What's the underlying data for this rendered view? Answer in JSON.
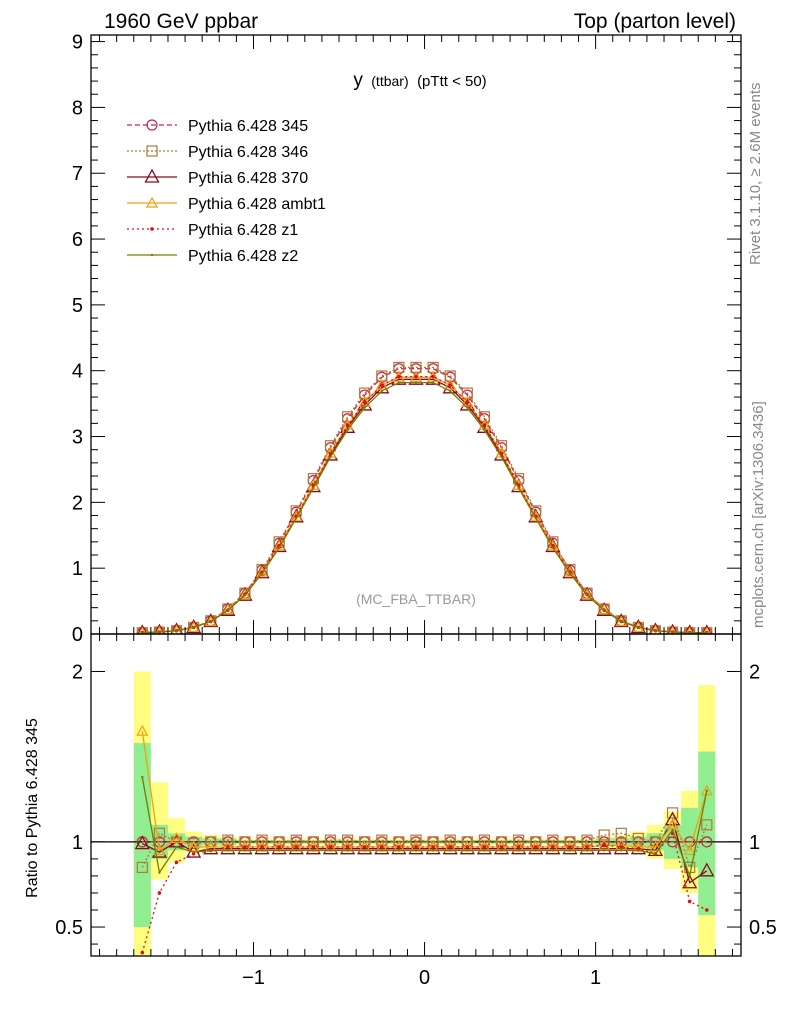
{
  "header": {
    "left": "1960 GeV ppbar",
    "right": "Top (parton level)"
  },
  "side_labels": {
    "rivet": "Rivet 3.1.10, ≥ 2.6M events",
    "mcplots": "mcplots.cern.ch [arXiv:1306.3436]"
  },
  "watermark": "(MC_FBA_TTBAR)",
  "chart_data": {
    "type": "line",
    "title": "y (ttbar) (pTtt < 50)",
    "title_main": "y",
    "title_sub": "(ttbar)",
    "title_cut": "(pTtt < 50)",
    "xlim": [
      -1.95,
      1.85
    ],
    "ylim": [
      0,
      9.1
    ],
    "ratio_ylim": [
      0.33,
      2.22
    ],
    "xticks": [
      -1,
      0,
      1
    ],
    "xtick_labels": [
      "−1",
      "0",
      "1"
    ],
    "yticks": [
      0,
      1,
      2,
      3,
      4,
      5,
      6,
      7,
      8,
      9
    ],
    "ytick_labels": [
      "0",
      "1",
      "2",
      "3",
      "4",
      "5",
      "6",
      "7",
      "8",
      "9"
    ],
    "ratio_yticks": [
      0.5,
      1,
      2
    ],
    "ratio_ytick_labels": [
      "0.5",
      "1",
      "2"
    ],
    "ratio_ylabel": "Ratio to Pythia 6.428 345",
    "x": [
      -1.65,
      -1.55,
      -1.45,
      -1.35,
      -1.25,
      -1.15,
      -1.05,
      -0.95,
      -0.85,
      -0.75,
      -0.65,
      -0.55,
      -0.45,
      -0.35,
      -0.25,
      -0.15,
      -0.05,
      0.05,
      0.15,
      0.25,
      0.35,
      0.45,
      0.55,
      0.65,
      0.75,
      0.85,
      0.95,
      1.05,
      1.15,
      1.25,
      1.35,
      1.45,
      1.55,
      1.65
    ],
    "series": [
      {
        "name": "Pythia 6.428 345",
        "label": "Pythia 6.428 345",
        "color": "#cc2244",
        "marker": "circle",
        "dash": "5,3",
        "values": [
          0.02,
          0.03,
          0.05,
          0.1,
          0.2,
          0.38,
          0.62,
          0.97,
          1.38,
          1.85,
          2.33,
          2.83,
          3.27,
          3.63,
          3.9,
          4.03,
          4.03,
          4.03,
          3.9,
          3.63,
          3.27,
          2.83,
          2.33,
          1.85,
          1.38,
          0.97,
          0.62,
          0.38,
          0.2,
          0.1,
          0.05,
          0.03,
          0.02,
          0.02
        ],
        "ratio": [
          1,
          1,
          1,
          1,
          1,
          1,
          1,
          1,
          1,
          1,
          1,
          1,
          1,
          1,
          1,
          1,
          1,
          1,
          1,
          1,
          1,
          1,
          1,
          1,
          1,
          1,
          1,
          1,
          1,
          1,
          1,
          1,
          1,
          1
        ]
      },
      {
        "name": "Pythia 6.428 346",
        "label": "Pythia 6.428 346",
        "color": "#b07a3a",
        "marker": "square",
        "dash": "2,2",
        "values": [
          0.02,
          0.03,
          0.05,
          0.1,
          0.2,
          0.38,
          0.62,
          0.98,
          1.4,
          1.87,
          2.36,
          2.86,
          3.3,
          3.66,
          3.92,
          4.05,
          4.05,
          4.05,
          3.92,
          3.66,
          3.3,
          2.86,
          2.36,
          1.87,
          1.4,
          0.98,
          0.62,
          0.38,
          0.2,
          0.1,
          0.05,
          0.03,
          0.02,
          0.02
        ],
        "ratio": [
          0.85,
          1.05,
          1.0,
          0.99,
          1.0,
          1.01,
          1.0,
          1.01,
          1.0,
          1.01,
          1.0,
          1.01,
          1.01,
          1.0,
          1.01,
          1.0,
          1.01,
          1.0,
          1.01,
          1.0,
          1.01,
          1.0,
          1.01,
          1.0,
          1.01,
          1.0,
          1.01,
          1.04,
          1.05,
          1.02,
          1.0,
          1.17,
          0.85,
          1.1
        ]
      },
      {
        "name": "Pythia 6.428 370",
        "label": "Pythia 6.428 370",
        "color": "#8b0a1a",
        "marker": "triangle",
        "dash": "",
        "values": [
          0.02,
          0.03,
          0.05,
          0.1,
          0.19,
          0.36,
          0.59,
          0.93,
          1.33,
          1.78,
          2.24,
          2.72,
          3.14,
          3.48,
          3.74,
          3.87,
          3.87,
          3.87,
          3.74,
          3.48,
          3.14,
          2.72,
          2.24,
          1.78,
          1.33,
          0.93,
          0.59,
          0.36,
          0.19,
          0.1,
          0.05,
          0.03,
          0.02,
          0.02
        ],
        "ratio": [
          0.99,
          0.94,
          1.0,
          0.94,
          0.96,
          0.96,
          0.96,
          0.96,
          0.96,
          0.96,
          0.96,
          0.96,
          0.96,
          0.96,
          0.96,
          0.96,
          0.96,
          0.96,
          0.96,
          0.96,
          0.96,
          0.96,
          0.96,
          0.96,
          0.96,
          0.96,
          0.96,
          0.96,
          0.96,
          0.96,
          0.95,
          1.13,
          0.76,
          0.83
        ]
      },
      {
        "name": "Pythia 6.428 ambt1",
        "label": "Pythia 6.428 ambt1",
        "color": "#f0a010",
        "marker": "triangle-small",
        "dash": "",
        "values": [
          0.02,
          0.03,
          0.05,
          0.1,
          0.19,
          0.37,
          0.6,
          0.94,
          1.34,
          1.79,
          2.26,
          2.75,
          3.17,
          3.52,
          3.78,
          3.9,
          3.9,
          3.9,
          3.78,
          3.52,
          3.17,
          2.75,
          2.26,
          1.79,
          1.34,
          0.94,
          0.6,
          0.37,
          0.19,
          0.1,
          0.05,
          0.03,
          0.02,
          0.02
        ],
        "ratio": [
          1.65,
          0.95,
          1.02,
          0.97,
          0.97,
          0.97,
          0.97,
          0.97,
          0.97,
          0.97,
          0.97,
          0.97,
          0.97,
          0.97,
          0.97,
          0.97,
          0.97,
          0.97,
          0.97,
          0.97,
          0.97,
          0.97,
          0.97,
          0.97,
          0.97,
          0.97,
          0.97,
          0.98,
          0.98,
          0.97,
          0.97,
          1.1,
          0.95,
          1.3
        ]
      },
      {
        "name": "Pythia 6.428 z1",
        "label": "Pythia 6.428 z1",
        "color": "#dd1111",
        "marker": "dot",
        "dash": "2,3",
        "values": [
          0.02,
          0.03,
          0.05,
          0.1,
          0.19,
          0.36,
          0.6,
          0.94,
          1.34,
          1.79,
          2.26,
          2.74,
          3.17,
          3.52,
          3.78,
          3.91,
          3.91,
          3.91,
          3.78,
          3.52,
          3.17,
          2.74,
          2.26,
          1.79,
          1.34,
          0.94,
          0.6,
          0.36,
          0.19,
          0.1,
          0.05,
          0.03,
          0.02,
          0.02
        ],
        "ratio": [
          0.35,
          0.7,
          0.88,
          0.93,
          0.95,
          0.97,
          0.97,
          0.97,
          0.97,
          0.97,
          0.97,
          0.97,
          0.97,
          0.97,
          0.97,
          0.97,
          0.97,
          0.97,
          0.97,
          0.97,
          0.97,
          0.97,
          0.97,
          0.97,
          0.97,
          0.97,
          0.97,
          0.98,
          0.97,
          0.96,
          0.93,
          1.05,
          0.65,
          0.6
        ]
      },
      {
        "name": "Pythia 6.428 z2",
        "label": "Pythia 6.428 z2",
        "color": "#7a7a00",
        "marker": "dot-small",
        "dash": "",
        "values": [
          0.02,
          0.03,
          0.05,
          0.1,
          0.19,
          0.36,
          0.59,
          0.92,
          1.31,
          1.76,
          2.22,
          2.69,
          3.1,
          3.44,
          3.69,
          3.82,
          3.82,
          3.82,
          3.69,
          3.44,
          3.1,
          2.69,
          2.22,
          1.76,
          1.31,
          0.92,
          0.59,
          0.36,
          0.19,
          0.1,
          0.05,
          0.03,
          0.02,
          0.02
        ],
        "ratio": [
          1.38,
          0.82,
          0.97,
          0.94,
          0.95,
          0.95,
          0.95,
          0.95,
          0.95,
          0.95,
          0.95,
          0.95,
          0.95,
          0.95,
          0.95,
          0.95,
          0.95,
          0.95,
          0.95,
          0.95,
          0.95,
          0.95,
          0.95,
          0.95,
          0.95,
          0.95,
          0.95,
          0.95,
          0.95,
          0.95,
          0.93,
          1.07,
          0.8,
          1.3
        ]
      }
    ],
    "ratio_band_inner": [
      [
        0.5,
        1.58
      ],
      [
        0.9,
        1.1
      ],
      [
        0.95,
        1.05
      ],
      [
        0.97,
        1.03
      ],
      [
        0.98,
        1.02
      ],
      [
        0.98,
        1.02
      ],
      [
        0.99,
        1.01
      ],
      [
        0.99,
        1.01
      ],
      [
        0.99,
        1.01
      ],
      [
        0.99,
        1.01
      ],
      [
        0.99,
        1.01
      ],
      [
        0.99,
        1.01
      ],
      [
        0.99,
        1.01
      ],
      [
        0.99,
        1.01
      ],
      [
        0.99,
        1.01
      ],
      [
        0.99,
        1.01
      ],
      [
        0.99,
        1.01
      ],
      [
        0.99,
        1.01
      ],
      [
        0.99,
        1.01
      ],
      [
        0.99,
        1.01
      ],
      [
        0.99,
        1.01
      ],
      [
        0.99,
        1.01
      ],
      [
        0.99,
        1.01
      ],
      [
        0.99,
        1.01
      ],
      [
        0.99,
        1.01
      ],
      [
        0.99,
        1.01
      ],
      [
        0.99,
        1.01
      ],
      [
        0.98,
        1.02
      ],
      [
        0.98,
        1.02
      ],
      [
        0.97,
        1.03
      ],
      [
        0.95,
        1.05
      ],
      [
        0.9,
        1.1
      ],
      [
        0.85,
        1.2
      ],
      [
        0.57,
        1.53
      ]
    ],
    "ratio_band_outer": [
      [
        0.33,
        2.0
      ],
      [
        0.78,
        1.35
      ],
      [
        0.88,
        1.14
      ],
      [
        0.94,
        1.06
      ],
      [
        0.96,
        1.04
      ],
      [
        0.97,
        1.03
      ],
      [
        0.98,
        1.02
      ],
      [
        0.98,
        1.02
      ],
      [
        0.98,
        1.02
      ],
      [
        0.98,
        1.02
      ],
      [
        0.98,
        1.02
      ],
      [
        0.98,
        1.02
      ],
      [
        0.98,
        1.02
      ],
      [
        0.98,
        1.02
      ],
      [
        0.98,
        1.02
      ],
      [
        0.98,
        1.02
      ],
      [
        0.98,
        1.02
      ],
      [
        0.98,
        1.02
      ],
      [
        0.98,
        1.02
      ],
      [
        0.98,
        1.02
      ],
      [
        0.98,
        1.02
      ],
      [
        0.98,
        1.02
      ],
      [
        0.98,
        1.02
      ],
      [
        0.98,
        1.02
      ],
      [
        0.98,
        1.02
      ],
      [
        0.98,
        1.02
      ],
      [
        0.98,
        1.02
      ],
      [
        0.97,
        1.03
      ],
      [
        0.96,
        1.04
      ],
      [
        0.94,
        1.06
      ],
      [
        0.9,
        1.1
      ],
      [
        0.84,
        1.18
      ],
      [
        0.7,
        1.3
      ],
      [
        0.33,
        1.92
      ]
    ],
    "band_colors": {
      "inner": "#90ee90",
      "outer": "#fffe80"
    }
  }
}
